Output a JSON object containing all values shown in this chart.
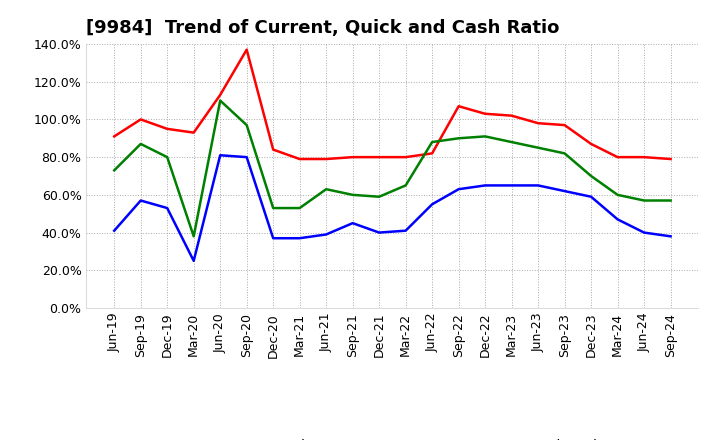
{
  "title": "[9984]  Trend of Current, Quick and Cash Ratio",
  "labels": [
    "Jun-19",
    "Sep-19",
    "Dec-19",
    "Mar-20",
    "Jun-20",
    "Sep-20",
    "Dec-20",
    "Mar-21",
    "Jun-21",
    "Sep-21",
    "Dec-21",
    "Mar-22",
    "Jun-22",
    "Sep-22",
    "Dec-22",
    "Mar-23",
    "Jun-23",
    "Sep-23",
    "Dec-23",
    "Mar-24",
    "Jun-24",
    "Sep-24"
  ],
  "current_ratio": [
    91,
    100,
    95,
    93,
    113,
    137,
    84,
    79,
    79,
    80,
    80,
    80,
    82,
    107,
    103,
    102,
    98,
    97,
    87,
    80,
    80,
    79
  ],
  "quick_ratio": [
    73,
    87,
    80,
    38,
    110,
    97,
    53,
    53,
    63,
    60,
    59,
    65,
    88,
    90,
    91,
    88,
    85,
    82,
    70,
    60,
    57,
    57
  ],
  "cash_ratio": [
    41,
    57,
    53,
    25,
    81,
    80,
    37,
    37,
    39,
    45,
    40,
    41,
    55,
    63,
    65,
    65,
    65,
    62,
    59,
    47,
    40,
    38
  ],
  "current_color": "#ff0000",
  "quick_color": "#008000",
  "cash_color": "#0000ff",
  "ylim": [
    0,
    140
  ],
  "yticks": [
    0,
    20,
    40,
    60,
    80,
    100,
    120,
    140
  ],
  "background_color": "#ffffff",
  "grid_color": "#aaaaaa",
  "line_width": 1.8,
  "title_fontsize": 13,
  "tick_fontsize": 9,
  "legend_fontsize": 10
}
